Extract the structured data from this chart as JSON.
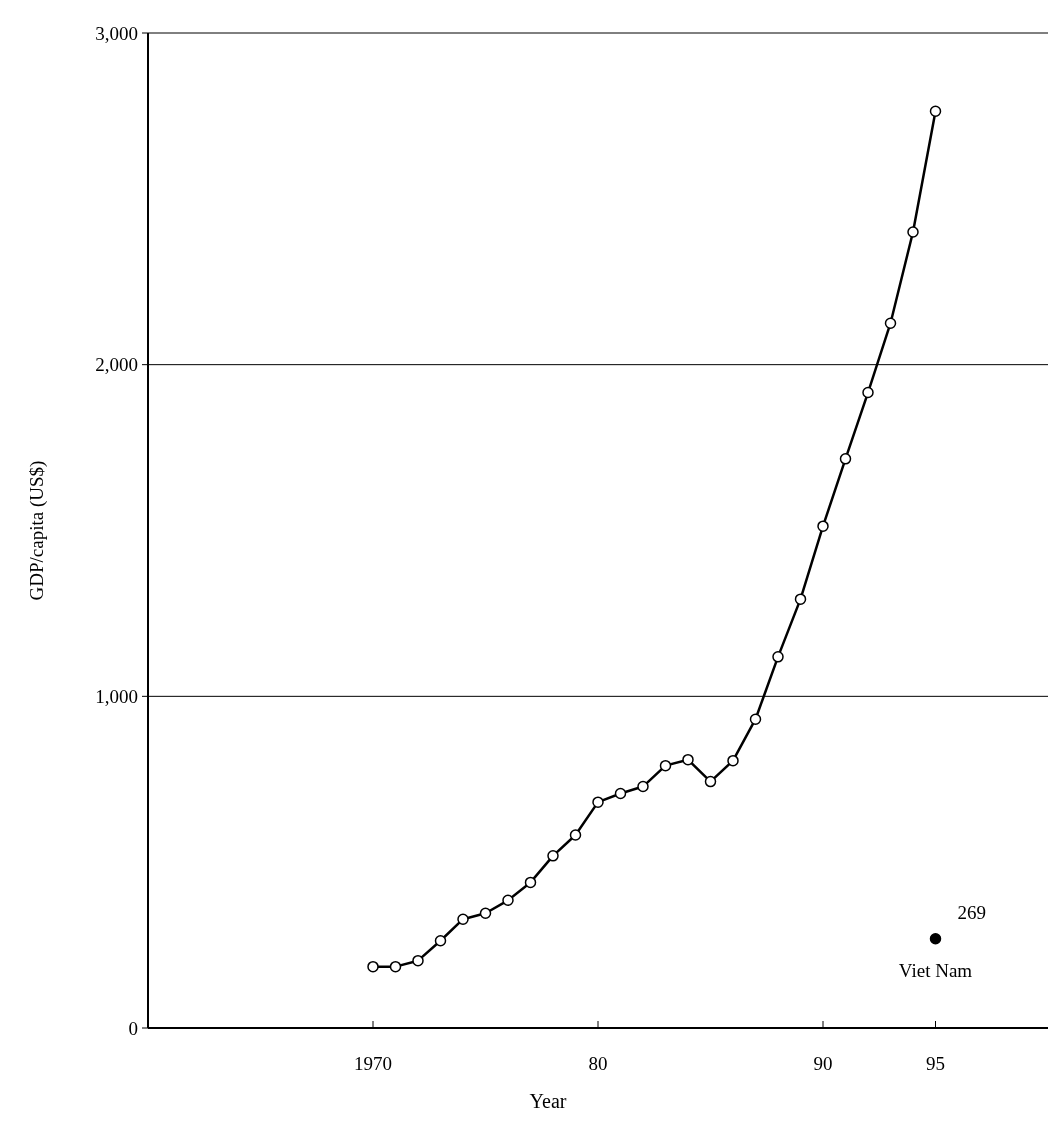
{
  "chart_data": {
    "type": "line",
    "xlabel": "Year",
    "ylabel": "GDP/capita (US$)",
    "xlim": [
      1960,
      2000
    ],
    "xticks": [
      {
        "value": 1970,
        "label": "1970"
      },
      {
        "value": 1980,
        "label": "80"
      },
      {
        "value": 1990,
        "label": "90"
      },
      {
        "value": 1995,
        "label": "95"
      }
    ],
    "ylim": [
      0,
      3000
    ],
    "yticks": [
      {
        "value": 0,
        "label": "0"
      },
      {
        "value": 1000,
        "label": "1,000"
      },
      {
        "value": 2000,
        "label": "2,000"
      },
      {
        "value": 3000,
        "label": "3,000"
      }
    ],
    "grid": "y",
    "marker": "circle",
    "line_style": "solid",
    "series": [
      {
        "color": "#000000",
        "x": [
          1970,
          1971,
          1972,
          1973,
          1974,
          1975,
          1976,
          1977,
          1978,
          1979,
          1980,
          1981,
          1982,
          1983,
          1984,
          1985,
          1986,
          1987,
          1988,
          1989,
          1990,
          1991,
          1992,
          1993,
          1994,
          1995
        ],
        "values": [
          185,
          185,
          203,
          263,
          328,
          346,
          385,
          439,
          519,
          582,
          681,
          707,
          728,
          791,
          809,
          743,
          806,
          931,
          1119,
          1293,
          1513,
          1716,
          1916,
          2125,
          2400,
          2764
        ]
      },
      {
        "type": "scatter",
        "name": "Viet Nam",
        "color": "#000000",
        "x": [
          1995
        ],
        "values": [
          269
        ],
        "value_labels": [
          "269"
        ]
      }
    ]
  }
}
